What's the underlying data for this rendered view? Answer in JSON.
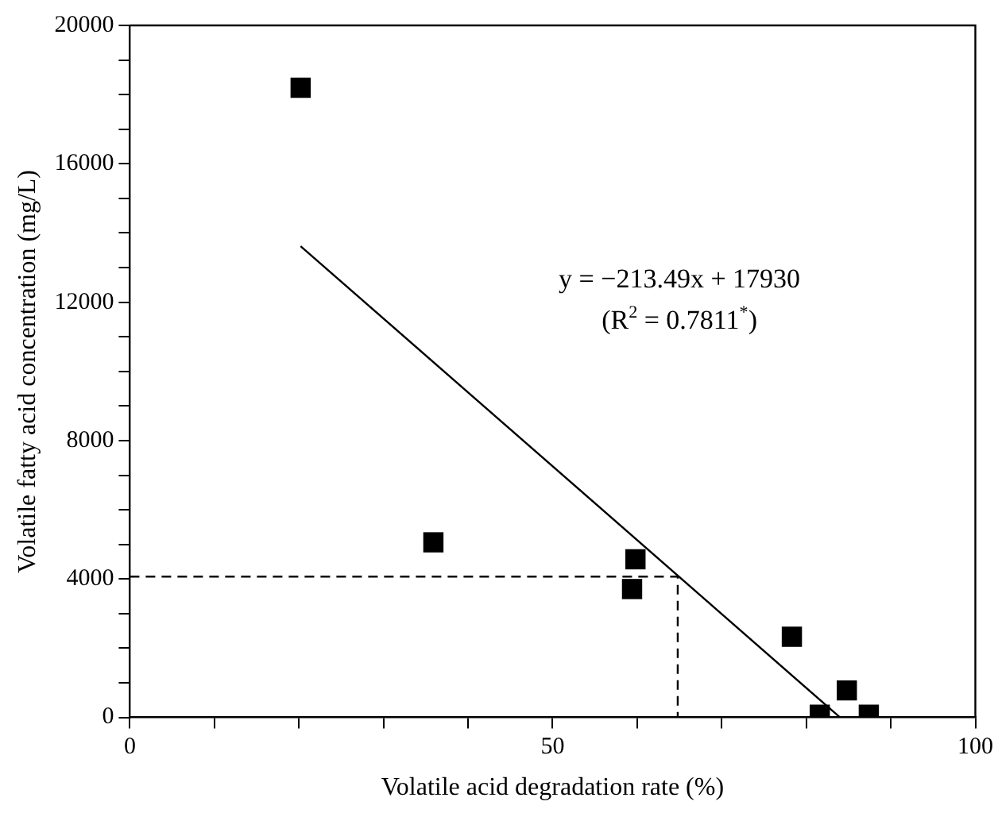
{
  "chart_data": {
    "type": "scatter",
    "xlabel": "Volatile acid degradation rate (%)",
    "ylabel": "Volatile fatty acid concentration (mg/L)",
    "xlim": [
      0,
      100
    ],
    "xticks": [
      0,
      {
        "value": 10,
        "label": null
      },
      {
        "value": 20,
        "label": null
      },
      {
        "value": 30,
        "label": null
      },
      {
        "value": 40,
        "label": null
      },
      50,
      {
        "value": 60,
        "label": null
      },
      {
        "value": 70,
        "label": null
      },
      {
        "value": 80,
        "label": null
      },
      {
        "value": 90,
        "label": null
      },
      100
    ],
    "ylim": [
      0,
      20000
    ],
    "yticks": [
      0,
      {
        "value": 1000,
        "label": null
      },
      {
        "value": 2000,
        "label": null
      },
      {
        "value": 3000,
        "label": null
      },
      4000,
      {
        "value": 5000,
        "label": null
      },
      {
        "value": 6000,
        "label": null
      },
      {
        "value": 7000,
        "label": null
      },
      8000,
      {
        "value": 9000,
        "label": null
      },
      {
        "value": 10000,
        "label": null
      },
      {
        "value": 11000,
        "label": null
      },
      12000,
      {
        "value": 13000,
        "label": null
      },
      {
        "value": 14000,
        "label": null
      },
      {
        "value": 15000,
        "label": null
      },
      16000,
      {
        "value": 17000,
        "label": null
      },
      {
        "value": 18000,
        "label": null
      },
      {
        "value": 19000,
        "label": null
      },
      20000
    ],
    "marker": "square",
    "grid": false,
    "legend": false,
    "annotations": [
      "y = −213.49x + 17930",
      "(R$^{2}$ = 0.7811$^{*}$)"
    ],
    "series": [
      {
        "type": "scatter",
        "color": "#000000",
        "x": [
          20.2,
          35.9,
          59.8,
          59.4,
          78.3,
          84.8,
          81.6,
          87.4
        ],
        "values": [
          18200,
          5060,
          4570,
          3710,
          2330,
          780,
          80,
          80
        ]
      },
      {
        "type": "line",
        "color": "#000000",
        "marker": "none",
        "x": [
          20.2,
          84
        ],
        "values": [
          13620,
          0
        ]
      },
      {
        "type": "line",
        "color": "#000000",
        "marker": "none",
        "line_style": "dashed",
        "x": [
          0,
          64.8,
          64.8
        ],
        "values": [
          4070,
          4070,
          0
        ]
      }
    ]
  }
}
